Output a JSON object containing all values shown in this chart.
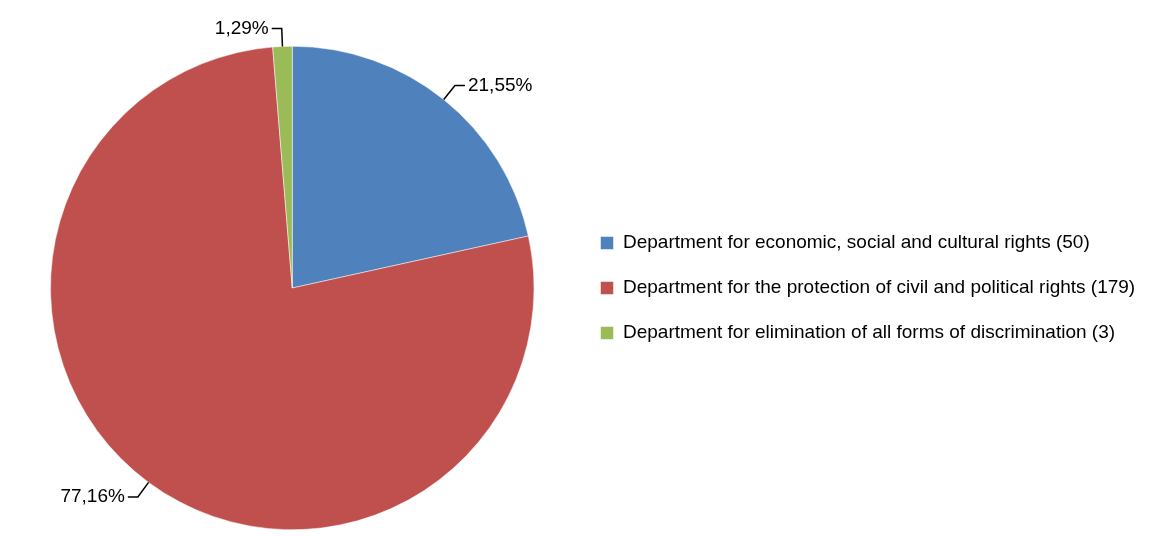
{
  "chart_data": {
    "type": "pie",
    "categories": [
      "Department for economic, social and cultural rights (50)",
      "Department for the protection of civil and political rights (179)",
      "Department for elimination of all forms of discrimination (3)"
    ],
    "values": [
      21.55,
      77.16,
      1.29
    ],
    "colors": [
      "#4f81bd",
      "#c0504d",
      "#9bbb59"
    ],
    "value_labels": [
      "21,55%",
      "77,16%",
      "1,29%"
    ],
    "legend": "right"
  }
}
